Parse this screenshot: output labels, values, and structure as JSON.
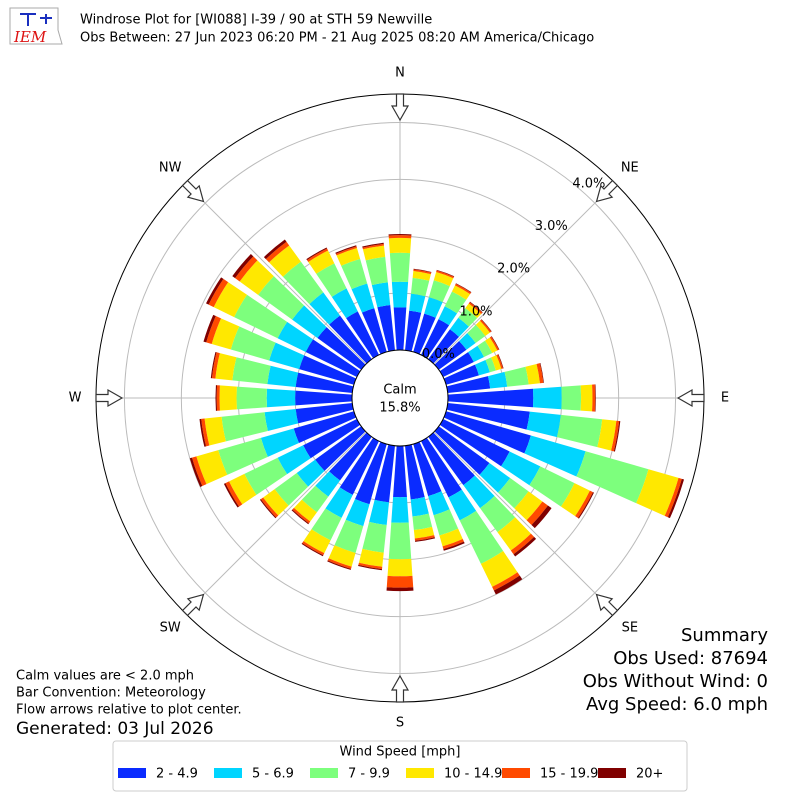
{
  "chart_data": {
    "type": "windrose",
    "logo_text": "IEM",
    "title": "Windrose Plot for [WI088] I-39 / 90 at STH 59 Newville",
    "subtitle": "Obs Between: 27 Jun 2023 06:20 PM - 21 Aug 2025 08:20 AM America/Chicago",
    "calm_label": "Calm",
    "calm_text": "15.8%",
    "notes": [
      "Calm values are < 2.0 mph",
      "Bar Convention: Meteorology",
      "Flow arrows relative to plot center."
    ],
    "generated": "Generated: 03 Jul 2026",
    "summary": [
      "Summary",
      "Obs Used: 87694",
      "Obs Without Wind: 0",
      "Avg Speed: 6.0 mph"
    ],
    "legend_title": "Wind Speed [mph]",
    "x": [
      0,
      10,
      20,
      30,
      40,
      50,
      60,
      70,
      80,
      90,
      100,
      110,
      120,
      130,
      140,
      150,
      160,
      170,
      180,
      190,
      200,
      210,
      220,
      230,
      240,
      250,
      260,
      270,
      280,
      290,
      300,
      310,
      320,
      330,
      340,
      350
    ],
    "xlim": [
      0,
      360
    ],
    "xticks": [
      {
        "value": 0,
        "label": "N"
      },
      {
        "value": 45,
        "label": "NE"
      },
      {
        "value": 90,
        "label": "E"
      },
      {
        "value": 135,
        "label": "SE"
      },
      {
        "value": 180,
        "label": "S"
      },
      {
        "value": 225,
        "label": "SW"
      },
      {
        "value": 270,
        "label": "W"
      },
      {
        "value": 315,
        "label": "NW"
      }
    ],
    "ylim": [
      0,
      4.5
    ],
    "yticks": [
      {
        "value": 0,
        "label": "0.0%"
      },
      {
        "value": 1,
        "label": "1.0%"
      },
      {
        "value": 2,
        "label": "2.0%"
      },
      {
        "value": 3,
        "label": "3.0%"
      },
      {
        "value": 4,
        "label": "4.0%"
      }
    ],
    "grid": true,
    "series": [
      {
        "name": "2 - 4.9",
        "color": "#0a2bff",
        "values": [
          0.75,
          0.7,
          0.7,
          0.7,
          0.65,
          0.6,
          0.6,
          0.6,
          0.75,
          1.5,
          1.45,
          1.55,
          1.3,
          1.1,
          1.05,
          1.1,
          0.95,
          0.95,
          0.9,
          1.0,
          1.1,
          1.05,
          0.95,
          1.0,
          1.05,
          1.1,
          1.0,
          1.0,
          1.0,
          1.0,
          1.0,
          0.95,
          0.95,
          0.85,
          0.8,
          0.8
        ]
      },
      {
        "name": "5 - 6.9",
        "color": "#00d5ff",
        "values": [
          0.45,
          0.3,
          0.3,
          0.25,
          0.25,
          0.2,
          0.2,
          0.2,
          0.3,
          0.5,
          0.55,
          1.0,
          0.6,
          0.45,
          0.5,
          0.45,
          0.35,
          0.3,
          0.45,
          0.4,
          0.4,
          0.45,
          0.35,
          0.4,
          0.5,
          0.6,
          0.55,
          0.5,
          0.5,
          0.55,
          0.55,
          0.55,
          0.5,
          0.45,
          0.45,
          0.4
        ]
      },
      {
        "name": "7 - 9.9",
        "color": "#7dff7d",
        "values": [
          0.51,
          0.28,
          0.31,
          0.29,
          0.21,
          0.21,
          0.16,
          0.11,
          0.38,
          0.34,
          0.73,
          1.15,
          0.67,
          0.4,
          0.52,
          0.85,
          0.37,
          0.24,
          0.64,
          0.49,
          0.49,
          0.44,
          0.34,
          0.48,
          0.65,
          0.78,
          0.76,
          0.53,
          0.62,
          0.7,
          0.85,
          0.74,
          0.67,
          0.49,
          0.45,
          0.45
        ]
      },
      {
        "name": "10 - 14.9",
        "color": "#ffe800",
        "values": [
          0.26,
          0.12,
          0.15,
          0.12,
          0.1,
          0.1,
          0.1,
          0.1,
          0.2,
          0.2,
          0.25,
          0.55,
          0.3,
          0.3,
          0.4,
          0.45,
          0.2,
          0.15,
          0.3,
          0.25,
          0.25,
          0.25,
          0.2,
          0.25,
          0.3,
          0.4,
          0.3,
          0.3,
          0.3,
          0.35,
          0.4,
          0.4,
          0.35,
          0.25,
          0.2,
          0.2
        ]
      },
      {
        "name": "15 - 19.9",
        "color": "#ff4a00",
        "values": [
          0.05,
          0.03,
          0.03,
          0.03,
          0.03,
          0.03,
          0.03,
          0.03,
          0.06,
          0.05,
          0.05,
          0.06,
          0.06,
          0.12,
          0.08,
          0.07,
          0.05,
          0.04,
          0.2,
          0.04,
          0.04,
          0.04,
          0.04,
          0.05,
          0.07,
          0.08,
          0.06,
          0.05,
          0.06,
          0.1,
          0.1,
          0.1,
          0.08,
          0.04,
          0.03,
          0.03
        ]
      },
      {
        "name": "20+",
        "color": "#800000",
        "values": [
          0.02,
          0.01,
          0.01,
          0.01,
          0.01,
          0.01,
          0.01,
          0.01,
          0.01,
          0.01,
          0.02,
          0.04,
          0.02,
          0.08,
          0.05,
          0.08,
          0.03,
          0.02,
          0.06,
          0.02,
          0.02,
          0.02,
          0.02,
          0.02,
          0.03,
          0.04,
          0.03,
          0.02,
          0.02,
          0.05,
          0.05,
          0.06,
          0.05,
          0.02,
          0.02,
          0.02
        ]
      }
    ]
  }
}
